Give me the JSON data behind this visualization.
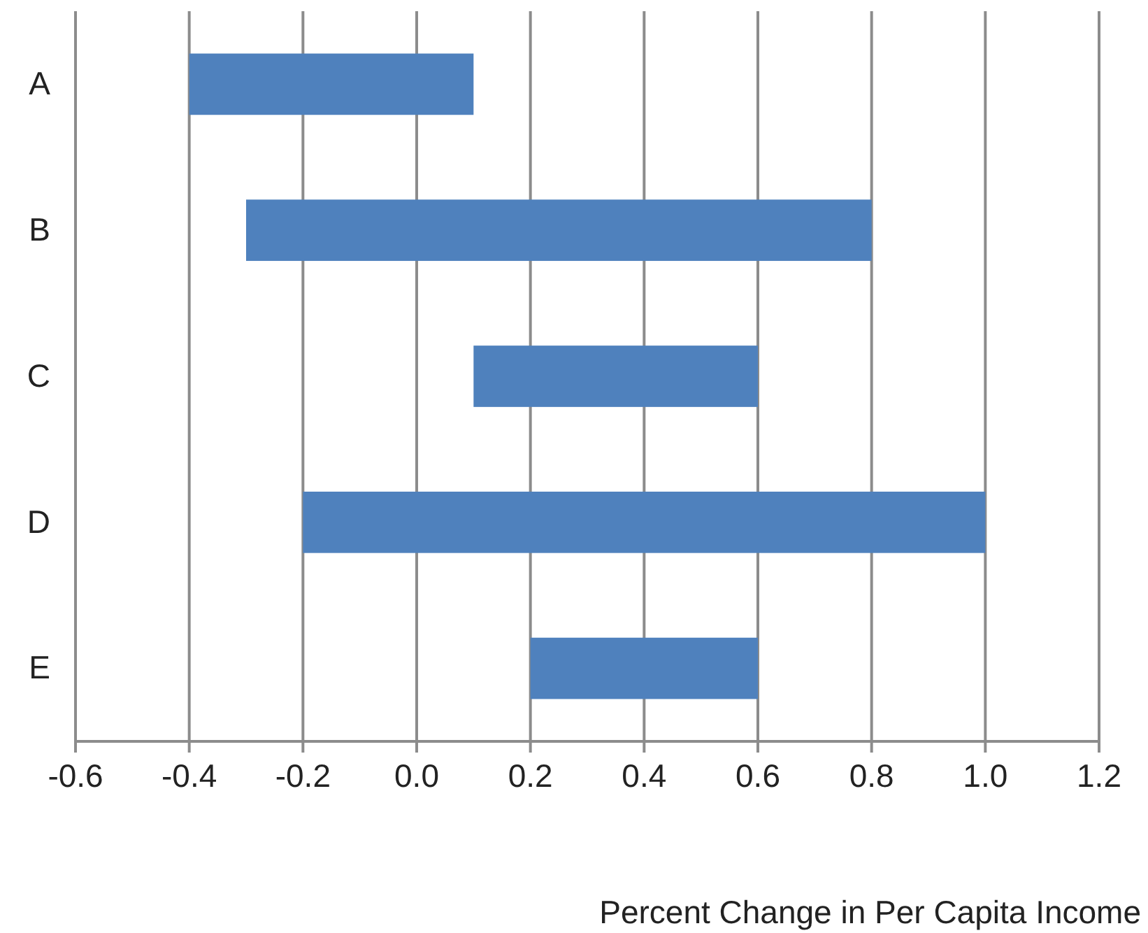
{
  "chart_data": {
    "type": "bar",
    "orientation": "horizontal",
    "xlabel": "Percent Change in Per Capita Income",
    "categories": [
      "A",
      "B",
      "C",
      "D",
      "E"
    ],
    "base": [
      -0.4,
      -0.3,
      0.1,
      -0.2,
      0.2
    ],
    "values": [
      0.5,
      1.1,
      0.5,
      1.2,
      0.4
    ],
    "color": "#4f81bd",
    "xlim": [
      -0.6,
      1.2
    ],
    "xticks": [
      -0.6,
      -0.4,
      -0.2,
      {
        "value": 0,
        "label": "0.0"
      },
      0.2,
      0.4,
      0.6,
      0.8,
      {
        "value": 1,
        "label": "1.0"
      },
      1.2
    ],
    "grid": "x"
  }
}
